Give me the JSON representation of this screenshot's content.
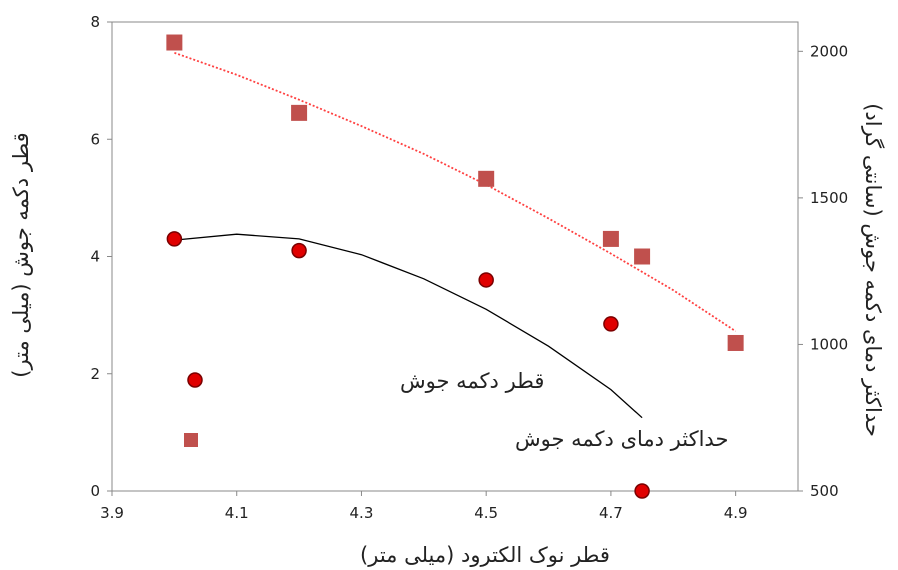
{
  "chart_data": {
    "type": "scatter",
    "xlabel": "قطر نوک الکترود (میلی متر)",
    "ylabel_left": "قطر دکمه جوش (میلی متر)",
    "ylabel_right": "حداکثر دمای دکمه جوش (سانتی گراد)",
    "xlim": [
      3.9,
      5.0
    ],
    "ylim_left": [
      0,
      8
    ],
    "ylim_right": [
      500,
      2100
    ],
    "x_ticks": [
      "3.9",
      "4.1",
      "4.3",
      "4.5",
      "4.7",
      "4.9"
    ],
    "y_left_ticks": [
      "0",
      "2",
      "4",
      "6",
      "8"
    ],
    "y_right_ticks": [
      "500",
      "1000",
      "1500",
      "2000"
    ],
    "grid": false,
    "legend_position": "lower-left",
    "series": [
      {
        "name": "قطر دکمه جوش",
        "axis": "left",
        "marker": "circle",
        "color": "#e00000",
        "points": [
          {
            "x": 4.0,
            "y": 4.3
          },
          {
            "x": 4.2,
            "y": 4.1
          },
          {
            "x": 4.5,
            "y": 3.6
          },
          {
            "x": 4.7,
            "y": 2.85
          },
          {
            "x": 4.75,
            "y": 0.0
          }
        ],
        "trendline": {
          "color": "#000000",
          "style": "solid",
          "points": [
            {
              "x": 4.0,
              "y": 4.28
            },
            {
              "x": 4.1,
              "y": 4.38
            },
            {
              "x": 4.2,
              "y": 4.3
            },
            {
              "x": 4.3,
              "y": 4.03
            },
            {
              "x": 4.4,
              "y": 3.62
            },
            {
              "x": 4.5,
              "y": 3.1
            },
            {
              "x": 4.6,
              "y": 2.47
            },
            {
              "x": 4.7,
              "y": 1.73
            },
            {
              "x": 4.75,
              "y": 1.25
            }
          ]
        }
      },
      {
        "name": "حداکثر دمای دکمه جوش",
        "axis": "right",
        "marker": "square",
        "color": "#c0504d",
        "points": [
          {
            "x": 4.0,
            "y": 2030
          },
          {
            "x": 4.2,
            "y": 1790
          },
          {
            "x": 4.5,
            "y": 1565
          },
          {
            "x": 4.7,
            "y": 1360
          },
          {
            "x": 4.75,
            "y": 1300
          },
          {
            "x": 4.9,
            "y": 1005
          }
        ],
        "trendline": {
          "color": "#ff4040",
          "style": "dotted",
          "points": [
            {
              "x": 4.0,
              "y": 1995
            },
            {
              "x": 4.1,
              "y": 1920
            },
            {
              "x": 4.2,
              "y": 1835
            },
            {
              "x": 4.3,
              "y": 1745
            },
            {
              "x": 4.4,
              "y": 1650
            },
            {
              "x": 4.5,
              "y": 1545
            },
            {
              "x": 4.6,
              "y": 1430
            },
            {
              "x": 4.7,
              "y": 1310
            },
            {
              "x": 4.8,
              "y": 1185
            },
            {
              "x": 4.9,
              "y": 1045
            }
          ]
        }
      }
    ]
  }
}
